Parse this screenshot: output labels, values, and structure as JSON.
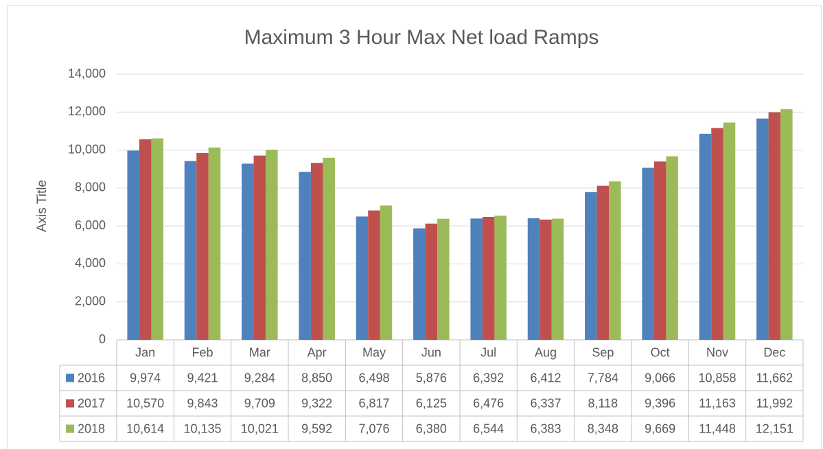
{
  "chart_data": {
    "type": "bar",
    "title": "Maximum 3 Hour Max Net load Ramps",
    "y_axis_title": "Axis Title",
    "categories": [
      "Jan",
      "Feb",
      "Mar",
      "Apr",
      "May",
      "Jun",
      "Jul",
      "Aug",
      "Sep",
      "Oct",
      "Nov",
      "Dec"
    ],
    "series": [
      {
        "name": "2016",
        "color": "#4f81bd",
        "values": [
          9974,
          9421,
          9284,
          8850,
          6498,
          5876,
          6392,
          6412,
          7784,
          9066,
          10858,
          11662
        ],
        "value_labels": [
          "9,974",
          "9,421",
          "9,284",
          "8,850",
          "6,498",
          "5,876",
          "6,392",
          "6,412",
          "7,784",
          "9,066",
          "10,858",
          "11,662"
        ]
      },
      {
        "name": "2017",
        "color": "#c0504d",
        "values": [
          10570,
          9843,
          9709,
          9322,
          6817,
          6125,
          6476,
          6337,
          8118,
          9396,
          11163,
          11992
        ],
        "value_labels": [
          "10,570",
          "9,843",
          "9,709",
          "9,322",
          "6,817",
          "6,125",
          "6,476",
          "6,337",
          "8,118",
          "9,396",
          "11,163",
          "11,992"
        ]
      },
      {
        "name": "2018",
        "color": "#9bbb59",
        "values": [
          10614,
          10135,
          10021,
          9592,
          7076,
          6380,
          6544,
          6383,
          8348,
          9669,
          11448,
          12151
        ],
        "value_labels": [
          "10,614",
          "10,135",
          "10,021",
          "9,592",
          "7,076",
          "6,380",
          "6,544",
          "6,383",
          "8,348",
          "9,669",
          "11,448",
          "12,151"
        ]
      }
    ],
    "ylim": [
      0,
      14000
    ],
    "yticks": [
      0,
      {
        "value": 2000,
        "label": "2,000"
      },
      {
        "value": 4000,
        "label": "4,000"
      },
      {
        "value": 6000,
        "label": "6,000"
      },
      {
        "value": 8000,
        "label": "8,000"
      },
      {
        "value": 10000,
        "label": "10,000"
      },
      {
        "value": 12000,
        "label": "12,000"
      },
      {
        "value": 14000,
        "label": "14,000"
      }
    ],
    "grid": true
  }
}
